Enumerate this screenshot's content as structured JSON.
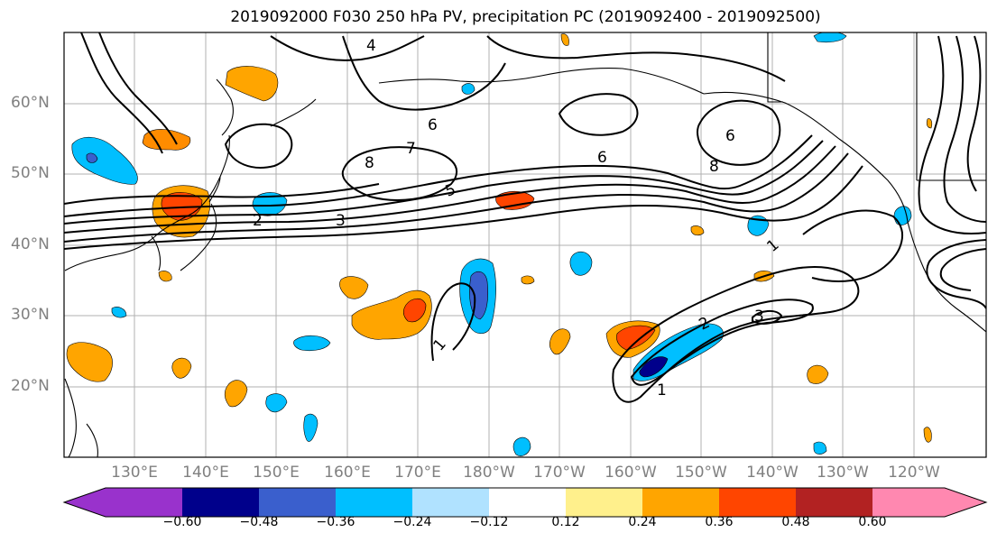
{
  "title": "2019092000 F030 250 hPa PV, precipitation PC (2019092400 - 2019092500)",
  "lat_labels": [
    "60°N",
    "50°N",
    "40°N",
    "30°N",
    "20°N"
  ],
  "lon_labels": [
    "130°E",
    "140°E",
    "150°E",
    "160°E",
    "170°E",
    "180°W",
    "170°W",
    "160°W",
    "150°W",
    "140°W",
    "130°W",
    "120°W"
  ],
  "colorbar": {
    "ticks": [
      "−0.60",
      "−0.48",
      "−0.36",
      "−0.24",
      "−0.12",
      "0.12",
      "0.24",
      "0.36",
      "0.48",
      "0.60"
    ],
    "colors": [
      "#9932cc",
      "#00008b",
      "#3a5fcd",
      "#00bfff",
      "#b0e2ff",
      "#ffffff",
      "#fff08c",
      "#ffa500",
      "#ff4500",
      "#b22222",
      "#ff88b0"
    ]
  },
  "contour_labels": [
    "1",
    "1",
    "1",
    "2",
    "2",
    "3",
    "3",
    "4",
    "5",
    "6",
    "6",
    "6",
    "7",
    "8",
    "8"
  ]
}
